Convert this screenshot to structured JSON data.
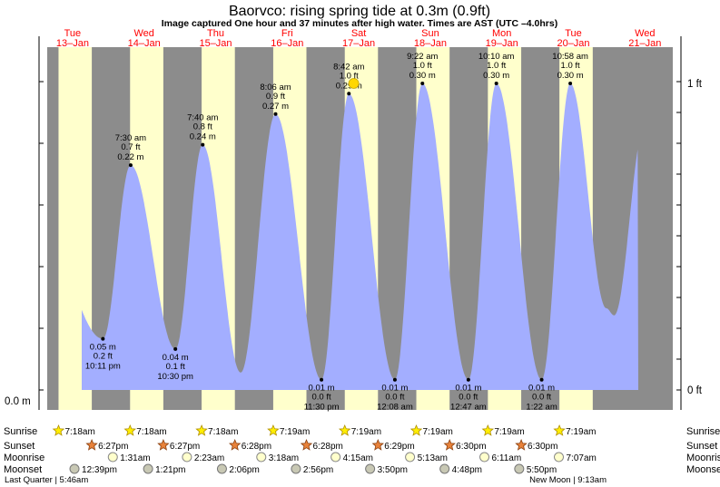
{
  "title": "Baorvco: rising  spring tide at 0.3m (0.9ft)",
  "subtitle": "Image captured One hour and 37 minutes after high water. Times are AST (UTC –4.0hrs)",
  "colors": {
    "night": "#8c8c8c",
    "day": "#ffffcc",
    "tide": "#a3aeff",
    "day_label": "#ff0000",
    "marker": "#ffd700"
  },
  "chart_data": {
    "type": "area",
    "title": "Baorvco: rising  spring tide at 0.3m (0.9ft)",
    "x_unit": "days after Tue 13-Jan 00:00",
    "xlim": [
      0,
      8.75
    ],
    "ylim_m": [
      0,
      0.3
    ],
    "day_labels": [
      {
        "day": "Tue",
        "date": "13–Jan"
      },
      {
        "day": "Wed",
        "date": "14–Jan"
      },
      {
        "day": "Thu",
        "date": "15–Jan"
      },
      {
        "day": "Fri",
        "date": "16–Jan"
      },
      {
        "day": "Sat",
        "date": "17–Jan"
      },
      {
        "day": "Sun",
        "date": "18–Jan"
      },
      {
        "day": "Mon",
        "date": "19–Jan"
      },
      {
        "day": "Tue",
        "date": "20–Jan"
      },
      {
        "day": "Wed",
        "date": "21–Jan"
      }
    ],
    "y_axis_left": {
      "label": "0.0 m",
      "value": 0
    },
    "y_axis_right": [
      {
        "label": "0 ft",
        "value_m": 0
      },
      {
        "label": "1 ft",
        "value_m": 0.3
      }
    ],
    "daylight": [
      {
        "rise": 0.304,
        "set": 0.769
      },
      {
        "rise": 1.304,
        "set": 1.769
      },
      {
        "rise": 2.304,
        "set": 2.769
      },
      {
        "rise": 3.305,
        "set": 3.769
      },
      {
        "rise": 4.305,
        "set": 4.769
      },
      {
        "rise": 5.305,
        "set": 5.77
      },
      {
        "rise": 6.305,
        "set": 6.771
      },
      {
        "rise": 7.305,
        "set": 7.771
      }
    ],
    "high_tides": [
      {
        "t": 1.3125,
        "m": 0.22,
        "time": "7:30 am",
        "ft": "0.7 ft",
        "m_label": "0.22 m"
      },
      {
        "t": 2.3194,
        "m": 0.24,
        "time": "7:40 am",
        "ft": "0.8 ft",
        "m_label": "0.24 m"
      },
      {
        "t": 3.3375,
        "m": 0.27,
        "time": "8:06 am",
        "ft": "0.9 ft",
        "m_label": "0.27 m"
      },
      {
        "t": 4.3625,
        "m": 0.29,
        "time": "8:42 am",
        "ft": "1.0 ft",
        "m_label": "0.29 m"
      },
      {
        "t": 5.3903,
        "m": 0.3,
        "time": "9:22 am",
        "ft": "1.0 ft",
        "m_label": "0.30 m"
      },
      {
        "t": 6.4236,
        "m": 0.3,
        "time": "10:10 am",
        "ft": "1.0 ft",
        "m_label": "0.30 m"
      },
      {
        "t": 7.4569,
        "m": 0.3,
        "time": "10:58 am",
        "ft": "1.0 ft",
        "m_label": "0.30 m"
      }
    ],
    "low_tides": [
      {
        "t": 0.9243,
        "m": 0.05,
        "time": "10:11 pm",
        "ft": "0.2 ft",
        "m_label": "0.05 m"
      },
      {
        "t": 1.9375,
        "m": 0.04,
        "time": "10:30 pm",
        "ft": "0.1 ft",
        "m_label": "0.04 m"
      },
      {
        "t": 3.9792,
        "m": 0.01,
        "time": "11:30 pm",
        "ft": "0.0 ft",
        "m_label": "0.01 m"
      },
      {
        "t": 5.0056,
        "m": 0.01,
        "time": "12:08 am",
        "ft": "0.0 ft",
        "m_label": "0.01 m"
      },
      {
        "t": 6.0326,
        "m": 0.01,
        "time": "12:47 am",
        "ft": "0.0 ft",
        "m_label": "0.01 m"
      },
      {
        "t": 7.0569,
        "m": 0.01,
        "time": "1:22 am",
        "ft": "0.0 ft",
        "m_label": "0.01 m"
      }
    ],
    "curve_extremes": [
      {
        "t": 0.0,
        "m": 0.172
      },
      {
        "t": 0.9243,
        "m": 0.05
      },
      {
        "t": 1.3125,
        "m": 0.22
      },
      {
        "t": 1.9375,
        "m": 0.04
      },
      {
        "t": 2.3194,
        "m": 0.24
      },
      {
        "t": 2.85,
        "m": 0.017
      },
      {
        "t": 3.3375,
        "m": 0.27
      },
      {
        "t": 3.9792,
        "m": 0.01
      },
      {
        "t": 4.3625,
        "m": 0.29
      },
      {
        "t": 5.0056,
        "m": 0.01
      },
      {
        "t": 5.3903,
        "m": 0.3
      },
      {
        "t": 6.0326,
        "m": 0.01
      },
      {
        "t": 6.4236,
        "m": 0.3
      },
      {
        "t": 7.0569,
        "m": 0.01
      },
      {
        "t": 7.4569,
        "m": 0.3
      },
      {
        "t": 7.96,
        "m": 0.08
      },
      {
        "t": 8.07,
        "m": 0.073
      },
      {
        "t": 8.5,
        "m": 0.26
      }
    ],
    "current": {
      "t": 4.43,
      "m": 0.3
    }
  },
  "astro": {
    "rows": [
      {
        "key": "sunrise",
        "label": "Sunrise"
      },
      {
        "key": "sunset",
        "label": "Sunset"
      },
      {
        "key": "moonrise",
        "label": "Moonrise"
      },
      {
        "key": "moonset",
        "label": "Moonset"
      }
    ],
    "sunrise": [
      {
        "t": 0.304,
        "label": "7:18am"
      },
      {
        "t": 1.304,
        "label": "7:18am"
      },
      {
        "t": 2.304,
        "label": "7:18am"
      },
      {
        "t": 3.305,
        "label": "7:19am"
      },
      {
        "t": 4.305,
        "label": "7:19am"
      },
      {
        "t": 5.305,
        "label": "7:19am"
      },
      {
        "t": 6.305,
        "label": "7:19am"
      },
      {
        "t": 7.305,
        "label": "7:19am"
      }
    ],
    "sunset": [
      {
        "t": 0.769,
        "label": "6:27pm"
      },
      {
        "t": 1.769,
        "label": "6:27pm"
      },
      {
        "t": 2.769,
        "label": "6:28pm"
      },
      {
        "t": 3.769,
        "label": "6:28pm"
      },
      {
        "t": 4.769,
        "label": "6:29pm"
      },
      {
        "t": 5.77,
        "label": "6:30pm"
      },
      {
        "t": 6.771,
        "label": "6:30pm"
      }
    ],
    "moonrise": [
      {
        "t": 1.063,
        "label": "1:31am"
      },
      {
        "t": 2.099,
        "label": "2:23am"
      },
      {
        "t": 3.138,
        "label": "3:18am"
      },
      {
        "t": 4.177,
        "label": "4:15am"
      },
      {
        "t": 5.217,
        "label": "5:13am"
      },
      {
        "t": 6.257,
        "label": "6:11am"
      },
      {
        "t": 7.297,
        "label": "7:07am"
      }
    ],
    "moonset": [
      {
        "t": 0.527,
        "label": "12:39pm"
      },
      {
        "t": 1.556,
        "label": "1:21pm"
      },
      {
        "t": 2.588,
        "label": "2:06pm"
      },
      {
        "t": 3.622,
        "label": "2:56pm"
      },
      {
        "t": 4.659,
        "label": "3:50pm"
      },
      {
        "t": 5.7,
        "label": "4:48pm"
      },
      {
        "t": 6.743,
        "label": "5:50pm"
      }
    ],
    "moon_phases_left": "Last Quarter | 5:46am",
    "moon_phases_right": "New Moon | 9:13am"
  }
}
